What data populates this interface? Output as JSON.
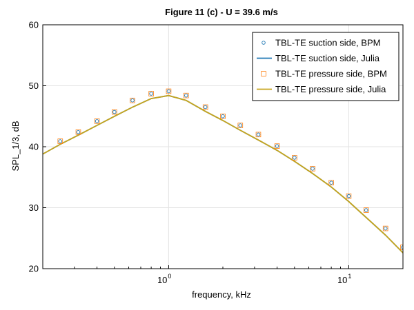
{
  "chart_data": {
    "type": "line",
    "title": "Figure 11 (c) - U = 39.6 m/s",
    "xlabel": "frequency, kHz",
    "ylabel": "SPL_1/3, dB",
    "xscale": "log",
    "xlim": [
      0.2,
      20
    ],
    "ylim": [
      20,
      60
    ],
    "yticks": [
      20,
      30,
      40,
      50,
      60
    ],
    "xticks": [
      {
        "value": 1,
        "base": "10",
        "exp": "0"
      },
      {
        "value": 10,
        "base": "10",
        "exp": "1"
      }
    ],
    "grid": true,
    "legend_position": "top-right",
    "series": [
      {
        "name": "TBL-TE suction side, BPM",
        "style": "circle-markers",
        "color": "#1f77b4",
        "x": [
          0.25,
          0.315,
          0.4,
          0.5,
          0.63,
          0.8,
          1.0,
          1.25,
          1.6,
          2.0,
          2.5,
          3.15,
          4.0,
          5.0,
          6.3,
          8.0,
          10.0,
          12.5,
          16.0,
          20.0
        ],
        "y": [
          40.9,
          42.4,
          44.2,
          45.7,
          47.6,
          48.7,
          49.1,
          48.4,
          46.5,
          45.0,
          43.5,
          42.0,
          40.1,
          38.2,
          36.4,
          34.1,
          31.9,
          29.6,
          26.6,
          23.5
        ]
      },
      {
        "name": "TBL-TE suction side, Julia",
        "style": "line",
        "color": "#1f77b4",
        "x": [
          0.2,
          0.25,
          0.315,
          0.4,
          0.5,
          0.63,
          0.8,
          1.0,
          1.25,
          1.6,
          2.0,
          2.5,
          3.15,
          4.0,
          5.0,
          6.3,
          8.0,
          10.0,
          12.5,
          16.0,
          20.0
        ],
        "y": [
          38.8,
          40.4,
          41.9,
          43.5,
          45.0,
          46.5,
          47.9,
          48.4,
          47.6,
          45.8,
          44.3,
          42.7,
          41.1,
          39.4,
          37.6,
          35.6,
          33.4,
          31.0,
          28.4,
          25.5,
          22.6
        ]
      },
      {
        "name": "TBL-TE pressure side, BPM",
        "style": "square-markers",
        "color": "#ff7f0e",
        "x": [
          0.25,
          0.315,
          0.4,
          0.5,
          0.63,
          0.8,
          1.0,
          1.25,
          1.6,
          2.0,
          2.5,
          3.15,
          4.0,
          5.0,
          6.3,
          8.0,
          10.0,
          12.5,
          16.0,
          20.0
        ],
        "y": [
          40.9,
          42.4,
          44.2,
          45.7,
          47.6,
          48.7,
          49.1,
          48.4,
          46.5,
          45.0,
          43.5,
          42.0,
          40.1,
          38.2,
          36.4,
          34.1,
          31.9,
          29.6,
          26.6,
          23.5
        ]
      },
      {
        "name": "TBL-TE pressure side, Julia",
        "style": "line",
        "color": "#c8a51b",
        "x": [
          0.2,
          0.25,
          0.315,
          0.4,
          0.5,
          0.63,
          0.8,
          1.0,
          1.25,
          1.6,
          2.0,
          2.5,
          3.15,
          4.0,
          5.0,
          6.3,
          8.0,
          10.0,
          12.5,
          16.0,
          20.0
        ],
        "y": [
          38.8,
          40.4,
          41.9,
          43.5,
          45.0,
          46.5,
          47.9,
          48.4,
          47.6,
          45.8,
          44.3,
          42.7,
          41.1,
          39.4,
          37.6,
          35.6,
          33.4,
          31.0,
          28.4,
          25.5,
          22.6
        ]
      }
    ]
  }
}
